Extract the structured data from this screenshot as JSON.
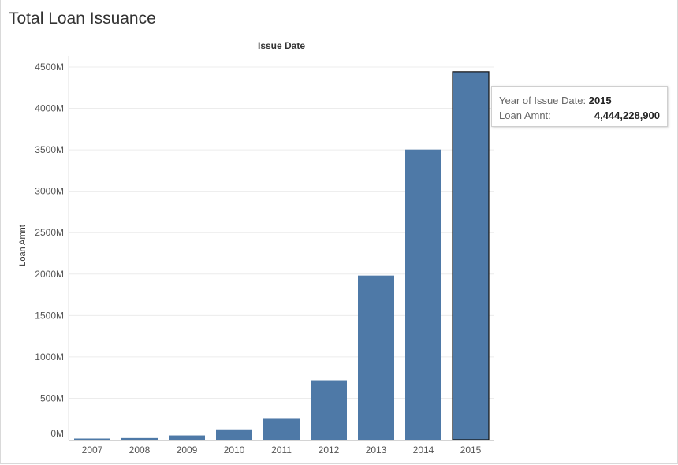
{
  "title": "Total Loan Issuance",
  "chart_data": {
    "type": "bar",
    "title": "Issue Date",
    "xlabel": "",
    "ylabel": "Loan Amnt",
    "categories": [
      "2007",
      "2008",
      "2009",
      "2010",
      "2011",
      "2012",
      "2013",
      "2014",
      "2015"
    ],
    "values": [
      4980000,
      20400000,
      51900000,
      126000000,
      262000000,
      718000000,
      1982000000,
      3504000000,
      4444228900
    ],
    "ylim": [
      0,
      4500000000
    ],
    "yticks": [
      0,
      500000000,
      1000000000,
      1500000000,
      2000000000,
      2500000000,
      3000000000,
      3500000000,
      4000000000,
      4500000000
    ],
    "ytick_labels": [
      "0M",
      "500M",
      "1000M",
      "1500M",
      "2000M",
      "2500M",
      "3000M",
      "3500M",
      "4000M",
      "4500M"
    ],
    "grid": true,
    "bar_color": "#4e79a7",
    "highlighted_category": "2015"
  },
  "tooltip": {
    "row1_label": "Year of Issue Date:",
    "row1_value": "2015",
    "row2_label": "Loan Amnt:",
    "row2_value": "4,444,228,900"
  }
}
